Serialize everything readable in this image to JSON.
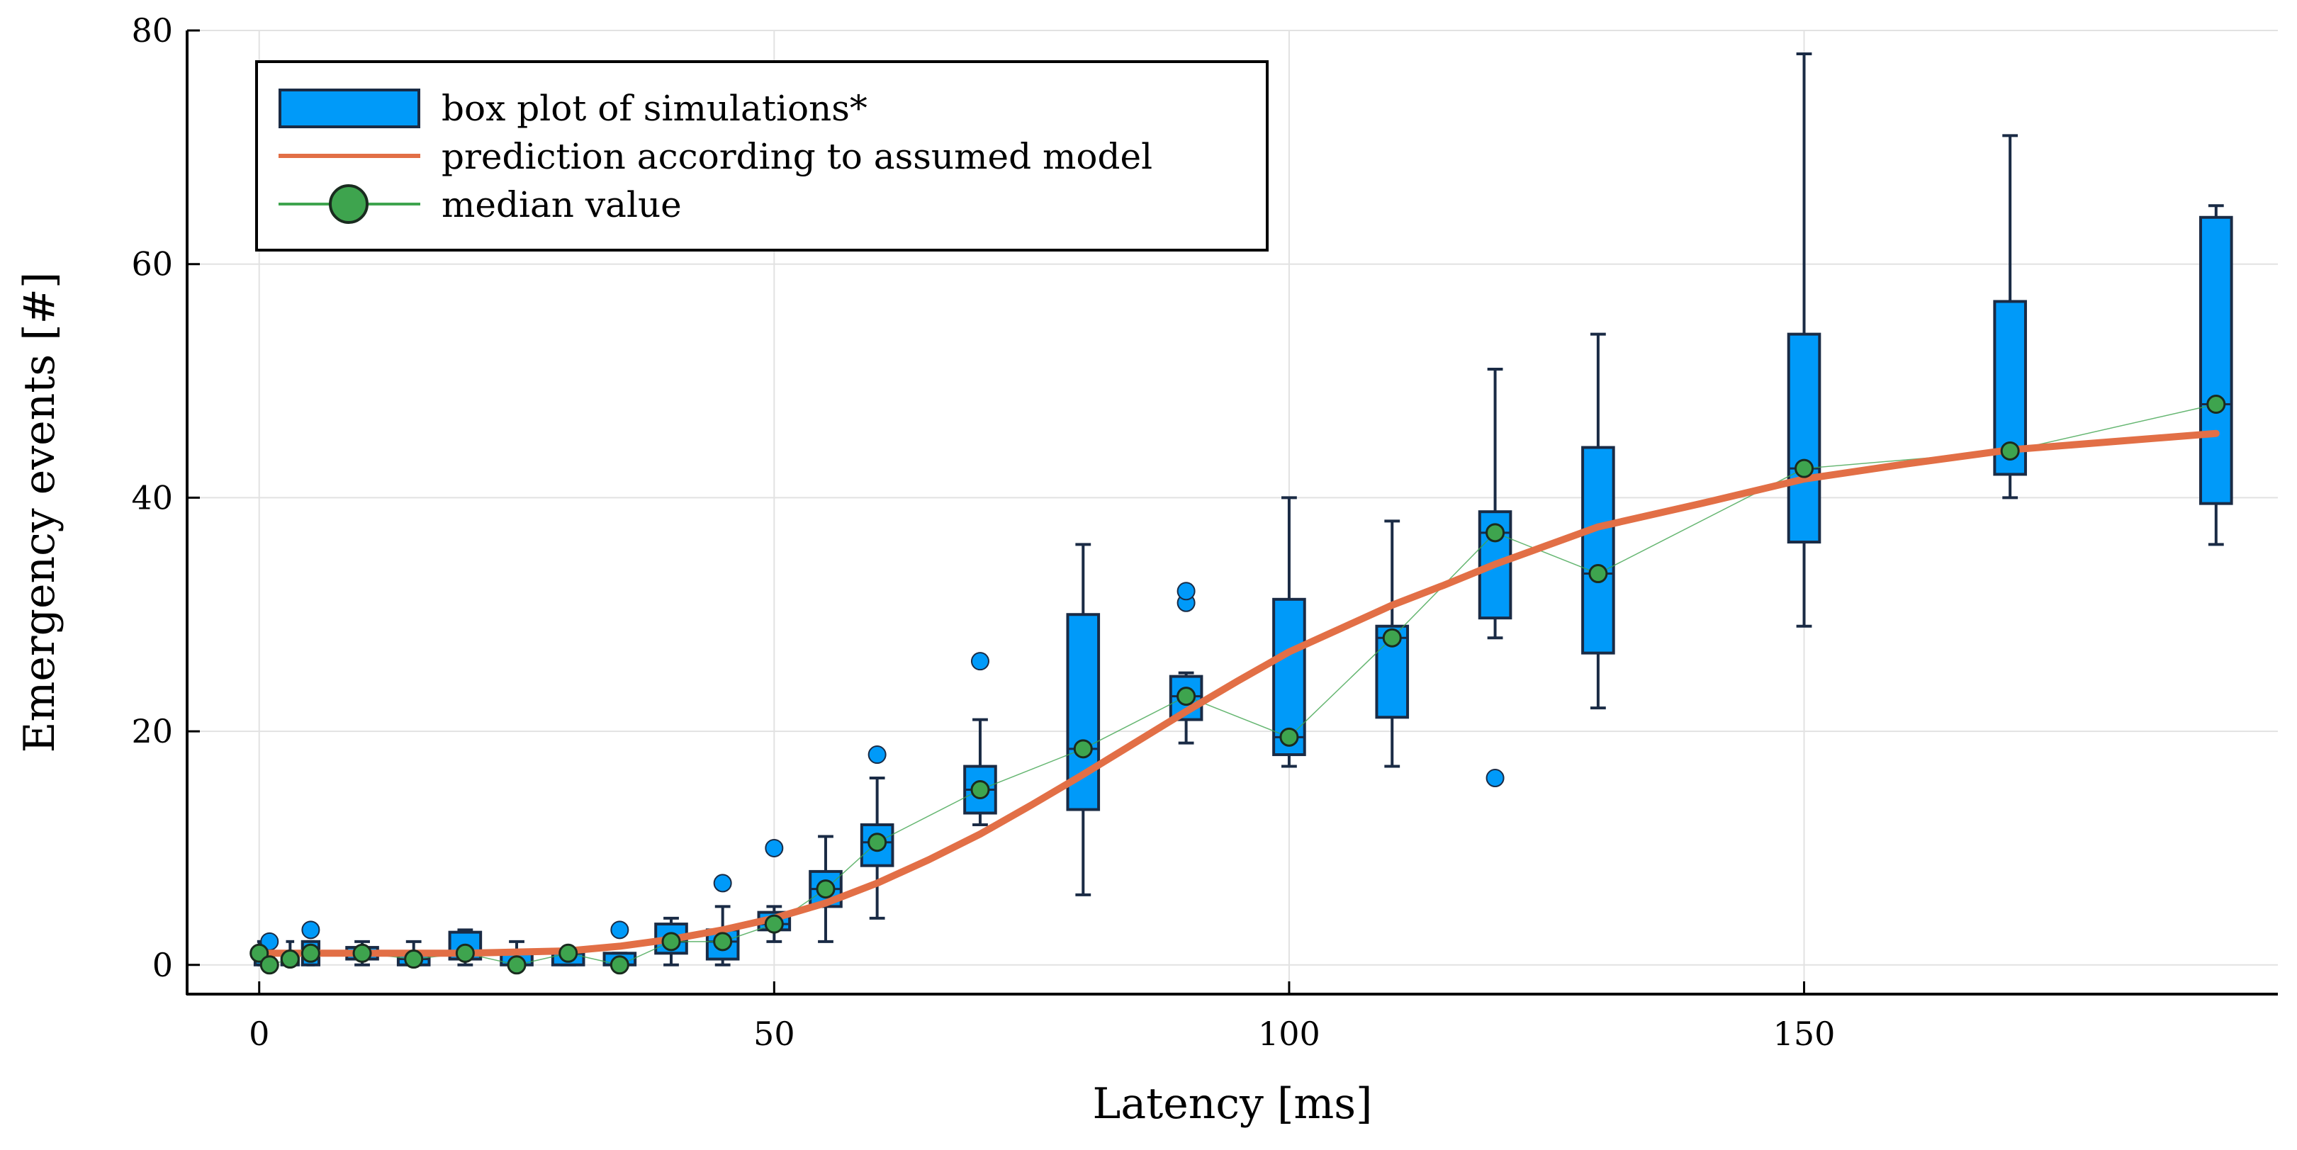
{
  "chart_data": {
    "type": "box",
    "xlabel": "Latency [ms]",
    "ylabel": "Emergency events [#]",
    "xlim": [
      -7,
      196
    ],
    "ylim": [
      -2.5,
      80
    ],
    "xticks": [
      0,
      50,
      100,
      150
    ],
    "yticks": [
      0,
      20,
      40,
      60,
      80
    ],
    "grid": true,
    "legend_position": "top-left",
    "legend": [
      {
        "label": "box plot of simulations*",
        "kind": "box"
      },
      {
        "label": "prediction according to assumed model",
        "kind": "line"
      },
      {
        "label": "median value",
        "kind": "marker-line"
      }
    ],
    "colors": {
      "box_fill": "#009af9",
      "box_stroke": "#1a2b45",
      "prediction": "#e26f46",
      "median": "#3ea44e",
      "grid": "#e2e2e2"
    },
    "box_series": {
      "name": "box plot of simulations*",
      "boxes": [
        {
          "x": 0,
          "q1": 0,
          "median": 1,
          "q3": 1,
          "whisker_low": 0,
          "whisker_high": 2,
          "outliers": []
        },
        {
          "x": 1,
          "q1": 0,
          "median": 0,
          "q3": 1,
          "whisker_low": 0,
          "whisker_high": 1,
          "outliers": [
            2
          ]
        },
        {
          "x": 3,
          "q1": 0,
          "median": 0.5,
          "q3": 1,
          "whisker_low": 0,
          "whisker_high": 2,
          "outliers": []
        },
        {
          "x": 5,
          "q1": 0,
          "median": 1,
          "q3": 2,
          "whisker_low": 0,
          "whisker_high": 2,
          "outliers": [
            3
          ]
        },
        {
          "x": 10,
          "q1": 0.5,
          "median": 1,
          "q3": 1.5,
          "whisker_low": 0,
          "whisker_high": 2,
          "outliers": []
        },
        {
          "x": 15,
          "q1": 0,
          "median": 0.5,
          "q3": 1,
          "whisker_low": 0,
          "whisker_high": 2,
          "outliers": []
        },
        {
          "x": 20,
          "q1": 0.5,
          "median": 1,
          "q3": 2.8,
          "whisker_low": 0,
          "whisker_high": 3,
          "outliers": []
        },
        {
          "x": 25,
          "q1": 0,
          "median": 0,
          "q3": 1,
          "whisker_low": 0,
          "whisker_high": 2,
          "outliers": []
        },
        {
          "x": 30,
          "q1": 0,
          "median": 1,
          "q3": 1,
          "whisker_low": 0,
          "whisker_high": 1,
          "outliers": []
        },
        {
          "x": 35,
          "q1": 0,
          "median": 0,
          "q3": 1,
          "whisker_low": 0,
          "whisker_high": 1,
          "outliers": [
            3
          ]
        },
        {
          "x": 40,
          "q1": 1,
          "median": 2,
          "q3": 3.5,
          "whisker_low": 0,
          "whisker_high": 4,
          "outliers": []
        },
        {
          "x": 45,
          "q1": 0.5,
          "median": 2,
          "q3": 3,
          "whisker_low": 0,
          "whisker_high": 5,
          "outliers": [
            7
          ]
        },
        {
          "x": 50,
          "q1": 3,
          "median": 3.5,
          "q3": 4.5,
          "whisker_low": 2,
          "whisker_high": 5,
          "outliers": [
            10
          ]
        },
        {
          "x": 55,
          "q1": 5,
          "median": 6.5,
          "q3": 8,
          "whisker_low": 2,
          "whisker_high": 11,
          "outliers": []
        },
        {
          "x": 60,
          "q1": 8.5,
          "median": 10.5,
          "q3": 12,
          "whisker_low": 4,
          "whisker_high": 16,
          "outliers": [
            18
          ]
        },
        {
          "x": 70,
          "q1": 13,
          "median": 15,
          "q3": 17,
          "whisker_low": 12,
          "whisker_high": 21,
          "outliers": [
            26
          ]
        },
        {
          "x": 80,
          "q1": 13.3,
          "median": 18.5,
          "q3": 30,
          "whisker_low": 6,
          "whisker_high": 36,
          "outliers": []
        },
        {
          "x": 90,
          "q1": 21,
          "median": 23,
          "q3": 24.7,
          "whisker_low": 19,
          "whisker_high": 25,
          "outliers": [
            31,
            32
          ]
        },
        {
          "x": 100,
          "q1": 18,
          "median": 19.5,
          "q3": 31.3,
          "whisker_low": 17,
          "whisker_high": 40,
          "outliers": []
        },
        {
          "x": 110,
          "q1": 21.2,
          "median": 28,
          "q3": 29,
          "whisker_low": 17,
          "whisker_high": 38,
          "outliers": []
        },
        {
          "x": 120,
          "q1": 29.7,
          "median": 37,
          "q3": 38.8,
          "whisker_low": 28,
          "whisker_high": 51,
          "outliers": [
            16
          ]
        },
        {
          "x": 130,
          "q1": 26.7,
          "median": 33.5,
          "q3": 44.3,
          "whisker_low": 22,
          "whisker_high": 54,
          "outliers": []
        },
        {
          "x": 150,
          "q1": 36.2,
          "median": 42.5,
          "q3": 54,
          "whisker_low": 29,
          "whisker_high": 78,
          "outliers": []
        },
        {
          "x": 170,
          "q1": 42,
          "median": 44,
          "q3": 56.8,
          "whisker_low": 40,
          "whisker_high": 71,
          "outliers": []
        },
        {
          "x": 190,
          "q1": 39.5,
          "median": 48,
          "q3": 64,
          "whisker_low": 36,
          "whisker_high": 65,
          "outliers": []
        }
      ]
    },
    "prediction_series": {
      "name": "prediction according to assumed model",
      "x": [
        0,
        10,
        20,
        30,
        35,
        40,
        45,
        50,
        55,
        60,
        65,
        70,
        75,
        80,
        85,
        90,
        95,
        100,
        105,
        110,
        115,
        120,
        125,
        130,
        140,
        150,
        160,
        170,
        180,
        190
      ],
      "y": [
        1,
        1,
        1,
        1.2,
        1.6,
        2.2,
        3,
        4,
        5.3,
        7,
        9,
        11.2,
        13.7,
        16.3,
        19,
        21.7,
        24.3,
        26.8,
        28.8,
        30.8,
        32.5,
        34.3,
        35.9,
        37.5,
        39.5,
        41.6,
        42.9,
        44.1,
        44.8,
        45.5
      ]
    },
    "median_series": {
      "name": "median value",
      "x": [
        0,
        1,
        3,
        5,
        10,
        15,
        20,
        25,
        30,
        35,
        40,
        45,
        50,
        55,
        60,
        70,
        80,
        90,
        100,
        110,
        120,
        130,
        150,
        170,
        190
      ],
      "y": [
        1,
        0,
        0.5,
        1,
        1,
        0.5,
        1,
        0,
        1,
        0,
        2,
        2,
        3.5,
        6.5,
        10.5,
        15,
        18.5,
        23,
        19.5,
        28,
        37,
        33.5,
        42.5,
        44,
        48
      ]
    }
  }
}
